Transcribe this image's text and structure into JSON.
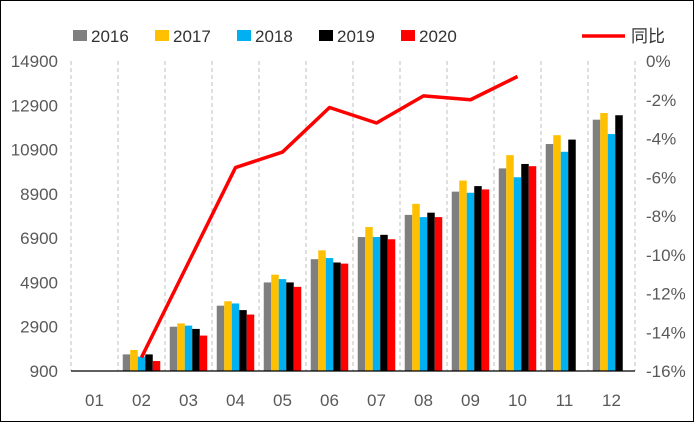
{
  "chart_data": {
    "type": "bar",
    "categories": [
      "01",
      "02",
      "03",
      "04",
      "05",
      "06",
      "07",
      "08",
      "09",
      "10",
      "11",
      "12"
    ],
    "series": [
      {
        "name": "2016",
        "color": "#7f7f7f",
        "values": [
          null,
          1650,
          2900,
          3850,
          4900,
          5950,
          6950,
          7950,
          9000,
          10050,
          11150,
          12250
        ]
      },
      {
        "name": "2017",
        "color": "#ffc000",
        "values": [
          null,
          1850,
          3050,
          4050,
          5250,
          6350,
          7400,
          8450,
          9500,
          10650,
          11550,
          12550
        ]
      },
      {
        "name": "2018",
        "color": "#00b0f0",
        "values": [
          null,
          1550,
          2950,
          3950,
          5050,
          6000,
          6950,
          7850,
          8950,
          9650,
          10800,
          11600
        ]
      },
      {
        "name": "2019",
        "color": "#000000",
        "values": [
          null,
          1650,
          2800,
          3650,
          4900,
          5800,
          7050,
          8050,
          9250,
          10250,
          11350,
          12450
        ]
      },
      {
        "name": "2020",
        "color": "#ff0000",
        "values": [
          null,
          1350,
          2500,
          3450,
          4700,
          5750,
          6850,
          7850,
          9100,
          10150,
          null,
          null
        ]
      }
    ],
    "line_series": {
      "name": "同比",
      "color": "#ff0000",
      "values": [
        null,
        -15.3,
        -10.4,
        -5.5,
        -4.7,
        -2.4,
        -3.2,
        -1.8,
        -2.0,
        -0.8,
        null,
        null
      ]
    },
    "y_left": {
      "ticks": [
        "900",
        "2900",
        "4900",
        "6900",
        "8900",
        "10900",
        "12900",
        "14900"
      ],
      "min": 900,
      "max": 14900
    },
    "y_right": {
      "ticks": [
        "0%",
        "-2%",
        "-4%",
        "-6%",
        "-8%",
        "-10%",
        "-12%",
        "-14%",
        "-16%"
      ],
      "min": -16,
      "max": 0
    },
    "grid": "vertical dashed",
    "legend_position": "top"
  }
}
